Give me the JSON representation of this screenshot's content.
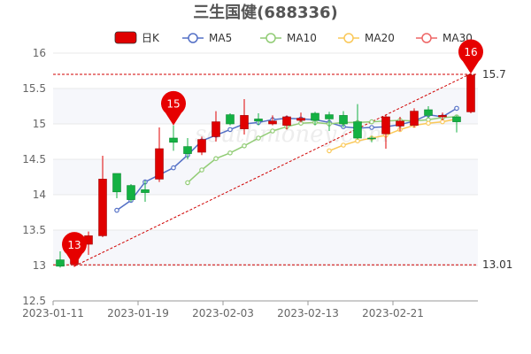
{
  "chart_data": {
    "type": "candlestick",
    "title": "三生国健(688336)",
    "legend": [
      {
        "name": "日K",
        "color": "#e00000",
        "kind": "candle"
      },
      {
        "name": "MA5",
        "color": "#5470c6",
        "kind": "line"
      },
      {
        "name": "MA10",
        "color": "#91cc75",
        "kind": "line"
      },
      {
        "name": "MA20",
        "color": "#fac858",
        "kind": "line"
      },
      {
        "name": "MA30",
        "color": "#ee6666",
        "kind": "line"
      }
    ],
    "ylim": [
      12.5,
      16
    ],
    "yticks": [
      "12.5",
      "13",
      "13.5",
      "14",
      "14.5",
      "15",
      "15.5",
      "16"
    ],
    "xtick_labels": [
      {
        "index": 0,
        "label": "2023-01-11"
      },
      {
        "index": 6,
        "label": "2023-01-19"
      },
      {
        "index": 12,
        "label": "2023-02-03"
      },
      {
        "index": 18,
        "label": "2023-02-13"
      },
      {
        "index": 24,
        "label": "2023-02-21"
      }
    ],
    "up_color": "#e00000",
    "down_color": "#14b143",
    "candles": [
      {
        "o": 13.08,
        "c": 12.99,
        "l": 12.97,
        "h": 13.2
      },
      {
        "o": 13.02,
        "c": 13.3,
        "l": 12.98,
        "h": 13.35
      },
      {
        "o": 13.3,
        "c": 13.42,
        "l": 13.15,
        "h": 13.48
      },
      {
        "o": 13.42,
        "c": 14.22,
        "l": 13.4,
        "h": 14.55
      },
      {
        "o": 14.3,
        "c": 14.04,
        "l": 13.95,
        "h": 14.3
      },
      {
        "o": 14.13,
        "c": 13.93,
        "l": 13.9,
        "h": 14.15
      },
      {
        "o": 14.07,
        "c": 14.03,
        "l": 13.9,
        "h": 14.2
      },
      {
        "o": 14.22,
        "c": 14.65,
        "l": 14.18,
        "h": 14.95
      },
      {
        "o": 14.8,
        "c": 14.74,
        "l": 14.62,
        "h": 14.98
      },
      {
        "o": 14.68,
        "c": 14.58,
        "l": 14.5,
        "h": 14.8
      },
      {
        "o": 14.6,
        "c": 14.78,
        "l": 14.56,
        "h": 14.82
      },
      {
        "o": 14.82,
        "c": 15.03,
        "l": 14.75,
        "h": 15.18
      },
      {
        "o": 15.13,
        "c": 15.0,
        "l": 14.98,
        "h": 15.15
      },
      {
        "o": 14.93,
        "c": 15.12,
        "l": 14.85,
        "h": 15.35
      },
      {
        "o": 15.07,
        "c": 15.04,
        "l": 14.98,
        "h": 15.15
      },
      {
        "o": 15.0,
        "c": 15.04,
        "l": 14.98,
        "h": 15.12
      },
      {
        "o": 14.98,
        "c": 15.1,
        "l": 14.92,
        "h": 15.12
      },
      {
        "o": 15.05,
        "c": 15.08,
        "l": 15.02,
        "h": 15.16
      },
      {
        "o": 15.15,
        "c": 15.05,
        "l": 14.98,
        "h": 15.17
      },
      {
        "o": 15.13,
        "c": 15.07,
        "l": 14.9,
        "h": 15.17
      },
      {
        "o": 15.12,
        "c": 15.0,
        "l": 14.95,
        "h": 15.18
      },
      {
        "o": 15.03,
        "c": 14.8,
        "l": 14.78,
        "h": 15.28
      },
      {
        "o": 14.8,
        "c": 14.79,
        "l": 14.74,
        "h": 14.83
      },
      {
        "o": 14.86,
        "c": 15.1,
        "l": 14.65,
        "h": 15.13
      },
      {
        "o": 14.97,
        "c": 15.04,
        "l": 14.9,
        "h": 15.1
      },
      {
        "o": 14.98,
        "c": 15.18,
        "l": 14.95,
        "h": 15.22
      },
      {
        "o": 15.2,
        "c": 15.12,
        "l": 15.08,
        "h": 15.25
      },
      {
        "o": 15.1,
        "c": 15.12,
        "l": 15.05,
        "h": 15.16
      },
      {
        "o": 15.1,
        "c": 15.03,
        "l": 14.88,
        "h": 15.12
      },
      {
        "o": 15.17,
        "c": 15.69,
        "l": 15.15,
        "h": 15.71
      }
    ],
    "series": [
      {
        "name": "MA5",
        "color": "#5470c6",
        "start": 4,
        "values": [
          13.78,
          13.92,
          14.18,
          14.28,
          14.38,
          14.56,
          14.76,
          14.84,
          14.92,
          15.0,
          15.02,
          15.06,
          15.08,
          15.07,
          15.06,
          15.02,
          14.96,
          14.94,
          14.95,
          14.96,
          14.99,
          15.04,
          15.13,
          15.1,
          15.22
        ]
      },
      {
        "name": "MA10",
        "color": "#91cc75",
        "start": 9,
        "values": [
          14.17,
          14.35,
          14.51,
          14.59,
          14.69,
          14.8,
          14.9,
          14.96,
          15.01,
          15.02,
          15.0,
          15.02,
          15.02,
          15.03,
          15.04,
          15.05,
          15.04,
          15.06,
          15.09,
          15.1
        ]
      },
      {
        "name": "MA20",
        "color": "#fac858",
        "start": 19,
        "values": [
          14.62,
          14.7,
          14.76,
          14.8,
          14.84,
          14.92,
          14.98,
          15.01,
          15.03,
          15.07
        ]
      }
    ],
    "reference_lines": [
      {
        "value": 15.7,
        "label": "15.7"
      },
      {
        "value": 13.01,
        "label": "13.01"
      }
    ],
    "markers": [
      {
        "index": 1,
        "value": 12.99,
        "label": "13"
      },
      {
        "index": 8,
        "value": 14.98,
        "label": "15"
      },
      {
        "index": 29,
        "value": 15.71,
        "label": "16"
      }
    ],
    "trendline": {
      "from_index": 1,
      "from_value": 12.99,
      "to_index": 29,
      "to_value": 15.71
    },
    "watermark": "southmoney.com"
  }
}
